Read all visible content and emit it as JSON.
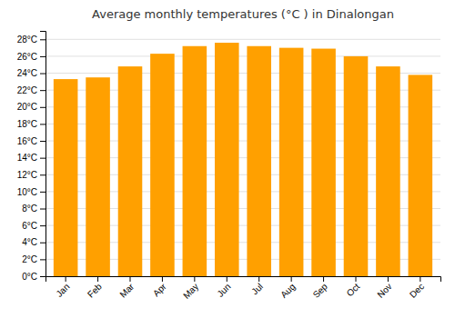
{
  "chart_data": {
    "type": "bar",
    "title": "Average monthly temperatures (°C ) in Dinalongan",
    "categories": [
      "Jan",
      "Feb",
      "Mar",
      "Apr",
      "May",
      "Jun",
      "Jul",
      "Aug",
      "Sep",
      "Oct",
      "Nov",
      "Dec"
    ],
    "values": [
      23.3,
      23.5,
      24.8,
      26.3,
      27.2,
      27.6,
      27.2,
      27.0,
      26.9,
      26.0,
      24.8,
      23.8
    ],
    "color": "#FFA000",
    "ylim": [
      0,
      29
    ],
    "yticks": [
      {
        "value": 0,
        "label": "0°C"
      },
      {
        "value": 2,
        "label": "2°C"
      },
      {
        "value": 4,
        "label": "4°C"
      },
      {
        "value": 6,
        "label": "6°C"
      },
      {
        "value": 8,
        "label": "8°C"
      },
      {
        "value": 10,
        "label": "10°C"
      },
      {
        "value": 12,
        "label": "12°C"
      },
      {
        "value": 14,
        "label": "14°C"
      },
      {
        "value": 16,
        "label": "16°C"
      },
      {
        "value": 18,
        "label": "18°C"
      },
      {
        "value": 20,
        "label": "20°C"
      },
      {
        "value": 22,
        "label": "22°C"
      },
      {
        "value": 24,
        "label": "24°C"
      },
      {
        "value": 26,
        "label": "26°C"
      },
      {
        "value": 28,
        "label": "28°C"
      }
    ],
    "grid": true
  }
}
